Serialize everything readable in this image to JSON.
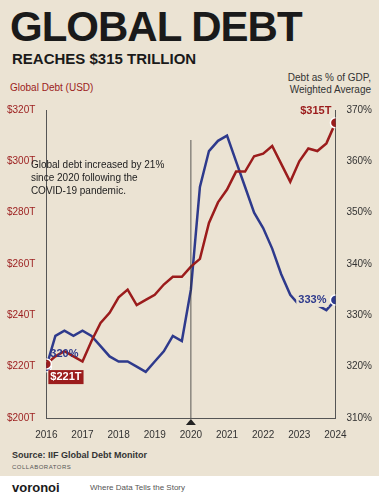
{
  "chart_data": {
    "type": "line",
    "title": "GLOBAL DEBT",
    "subtitle": "REACHES $315 TRILLION",
    "y_label": "Global Debt (USD)",
    "y2_label": "Debt as % of GDP, Weighted Average",
    "source": "Source: IIF Global Debt Monitor",
    "collaborators": "COLLABORATORS",
    "brand": "voronoi",
    "tagline": "Where Data Tells the Story",
    "annotations": [
      {
        "text": "Global debt increased by 21% since 2020 following the COVID-19 pandemic.",
        "x": 2020
      }
    ],
    "x": [
      2016,
      2016.25,
      2016.5,
      2016.75,
      2017,
      2017.25,
      2017.5,
      2017.75,
      2018,
      2018.25,
      2018.5,
      2018.75,
      2019,
      2019.25,
      2019.5,
      2019.75,
      2020,
      2020.25,
      2020.5,
      2020.75,
      2021,
      2021.25,
      2021.5,
      2021.75,
      2022,
      2022.25,
      2022.5,
      2022.75,
      2023,
      2023.25,
      2023.5,
      2023.75,
      2024
    ],
    "xlim": [
      2016,
      2024
    ],
    "xticks": [
      2016,
      2017,
      2018,
      2019,
      2020,
      2021,
      2022,
      2023,
      2024
    ],
    "ylim": [
      200,
      320
    ],
    "yticks": [
      {
        "value": 200,
        "label": "$200T"
      },
      {
        "value": 220,
        "label": "$220T"
      },
      {
        "value": 240,
        "label": "$240T"
      },
      {
        "value": 260,
        "label": "$260T"
      },
      {
        "value": 280,
        "label": "$280T"
      },
      {
        "value": 300,
        "label": "$300T"
      },
      {
        "value": 320,
        "label": "$320T"
      }
    ],
    "y2lim": [
      310,
      370
    ],
    "y2ticks": [
      {
        "value": 310,
        "label": "310%"
      },
      {
        "value": 320,
        "label": "320%"
      },
      {
        "value": 330,
        "label": "330%"
      },
      {
        "value": 340,
        "label": "340%"
      },
      {
        "value": 350,
        "label": "350%"
      },
      {
        "value": 360,
        "label": "360%"
      },
      {
        "value": 370,
        "label": "370%"
      }
    ],
    "grid": false,
    "legend": "none",
    "data_labels": true,
    "series": [
      {
        "name": "Global Debt (USD)",
        "color": "#9b1c1c",
        "marker": "circle",
        "line_style": "solid",
        "values": [
          221,
          224,
          226,
          224,
          222,
          230,
          237,
          241,
          247,
          250,
          244,
          246,
          248,
          252,
          255,
          255,
          259,
          262,
          276,
          284,
          289,
          296,
          296,
          302,
          303,
          306,
          299,
          292,
          300,
          305,
          304,
          307,
          315
        ],
        "value_labels": [
          "$221T",
          null,
          null,
          null,
          null,
          null,
          null,
          null,
          null,
          null,
          null,
          null,
          null,
          null,
          null,
          null,
          null,
          null,
          null,
          null,
          null,
          null,
          null,
          null,
          null,
          null,
          null,
          null,
          null,
          null,
          null,
          null,
          "$315T"
        ]
      },
      {
        "name": "Debt as % of GDP, Weighted Average",
        "color": "#2e3a8c",
        "marker": "circle",
        "line_style": "solid",
        "axis": "y2",
        "values": [
          320,
          326,
          327,
          326,
          327,
          326,
          324,
          322,
          321,
          321,
          320,
          319,
          321,
          323,
          326,
          325,
          335,
          355,
          362,
          364,
          365,
          360,
          355,
          350,
          347,
          343,
          338,
          334,
          332,
          333,
          332,
          331,
          333
        ],
        "value_labels": [
          "320%",
          null,
          null,
          null,
          null,
          null,
          null,
          null,
          null,
          null,
          null,
          null,
          null,
          null,
          null,
          null,
          null,
          null,
          null,
          null,
          null,
          null,
          null,
          null,
          null,
          null,
          null,
          null,
          null,
          null,
          null,
          null,
          "333%"
        ]
      }
    ]
  }
}
